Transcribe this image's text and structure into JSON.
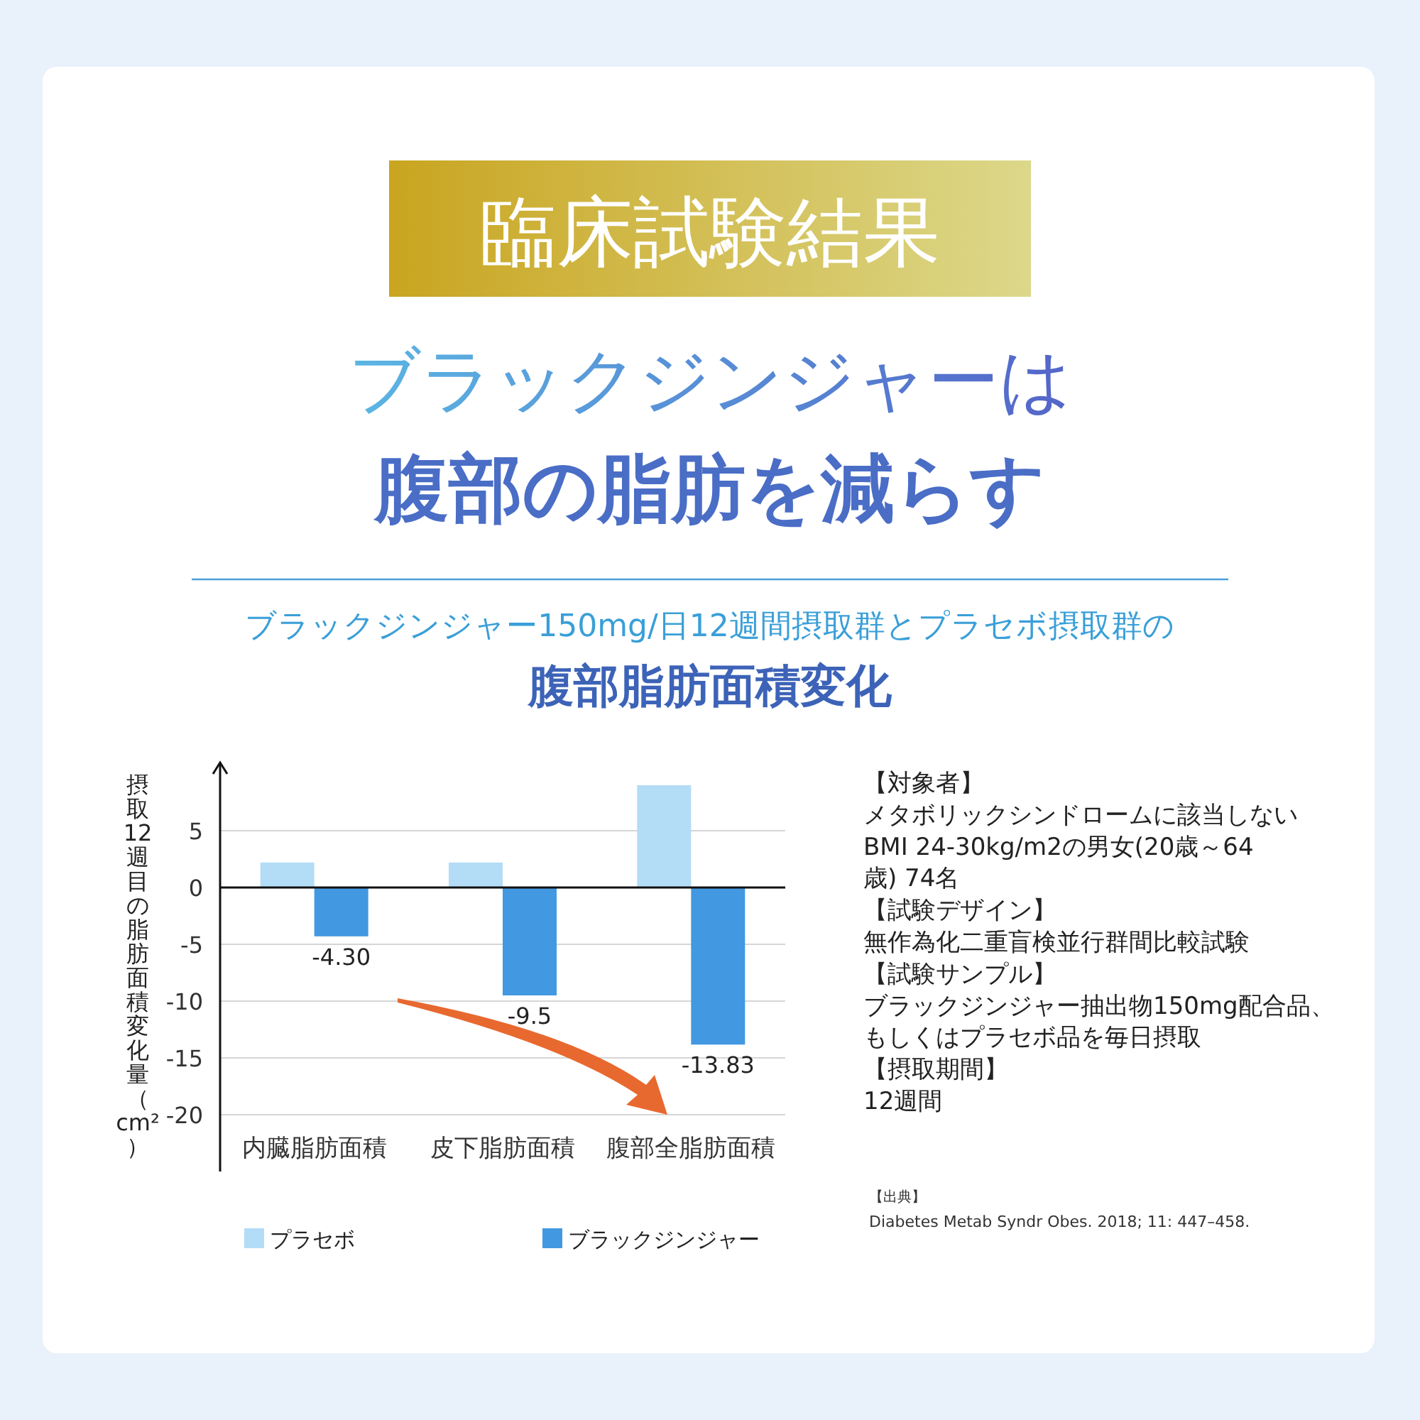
{
  "chart_data": {
    "type": "bar",
    "title": "臨床試験結果",
    "ylabel": "摂取12週目の脂肪面積変化量（cm²）",
    "categories": [
      "内臓脂肪面積",
      "皮下脂肪面積",
      "腹部全脂肪面積"
    ],
    "series": [
      {
        "name": "プラセボ",
        "color": "#b3dcf7",
        "values": [
          2.2,
          2.2,
          9.0
        ]
      },
      {
        "name": "ブラックジンジャー",
        "color": "#4299e1",
        "values": [
          -4.3,
          -9.5,
          -13.83
        ],
        "value_labels": [
          "-4.30",
          "-9.5",
          "-13.83"
        ]
      }
    ],
    "ylim": [
      -25,
      11
    ],
    "yticks": [
      5,
      0,
      -5,
      -10,
      -15,
      -20
    ],
    "grid": "y",
    "legend": "bottom",
    "annotations": [
      "ブラックジンジャーは",
      "腹部の脂肪を減らす",
      "ブラックジンジャー150mg/日12週間摂取群とプラセボ摂取群の",
      "腹部脂肪面積変化",
      "【対象者】",
      "メタボリックシンドロームに該当しない",
      "BMI 24-30kg/m2の男女(20歳～64",
      "歳) 74名",
      "【試験デザイン】",
      "無作為化二重盲検並行群間比較試験",
      "【試験サンプル】",
      "ブラックジンジャー抽出物150mg配合品、",
      "もしくはプラセボ品を毎日摂取",
      "【摂取期間】",
      "12週間",
      "【出典】",
      "Diabetes Metab Syndr Obes. 2018; 11: 447–458."
    ]
  }
}
